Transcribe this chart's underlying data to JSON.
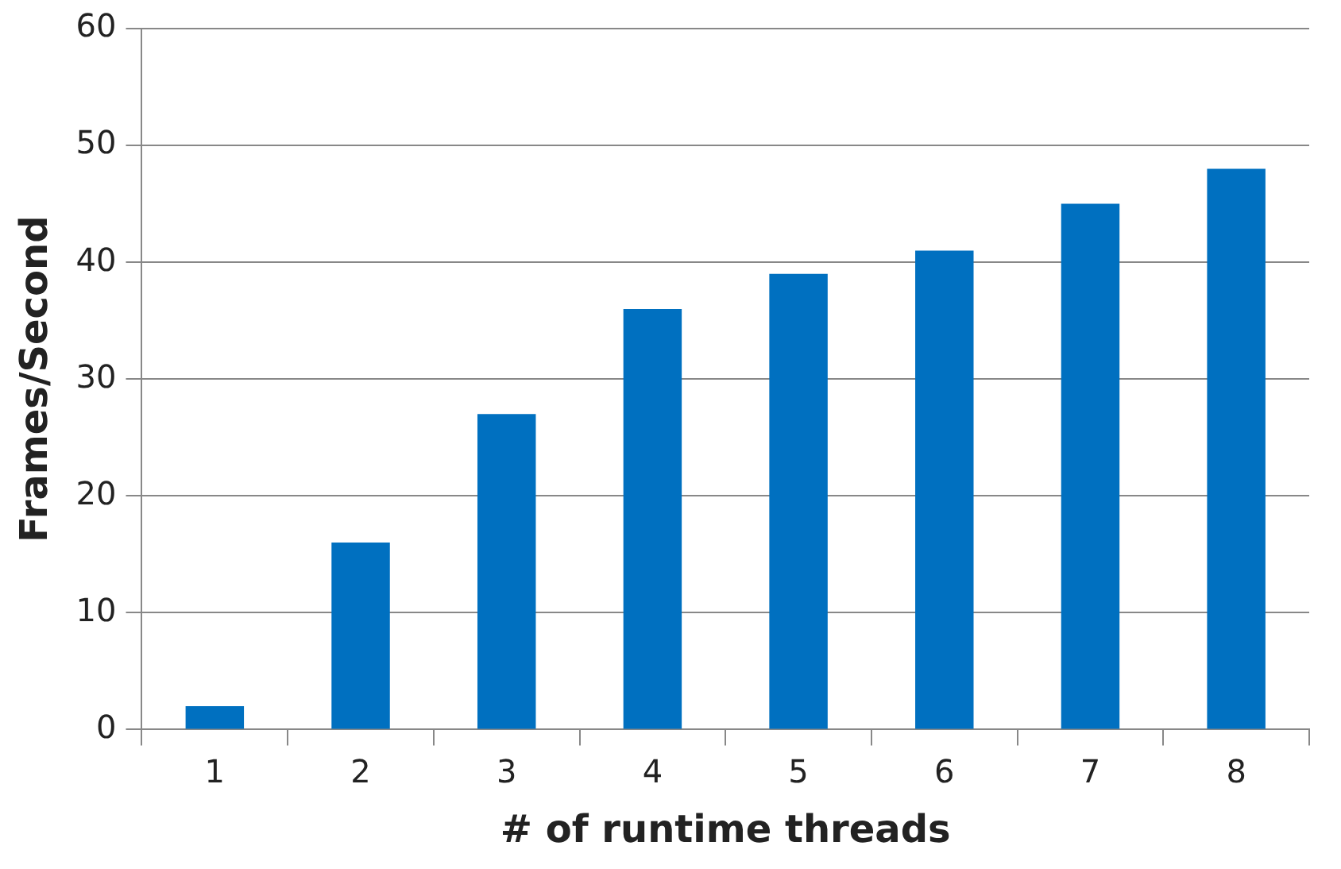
{
  "chart_data": {
    "type": "bar",
    "xlabel": "# of runtime threads",
    "ylabel": "Frames/Second",
    "categories": [
      "1",
      "2",
      "3",
      "4",
      "5",
      "6",
      "7",
      "8"
    ],
    "values": [
      2,
      16,
      27,
      36,
      39,
      41,
      45,
      48
    ],
    "color": "#0070c0",
    "ylim": [
      0,
      60
    ],
    "yticks": [
      0,
      10,
      20,
      30,
      40,
      50,
      60
    ],
    "grid": "y",
    "legend": false
  }
}
